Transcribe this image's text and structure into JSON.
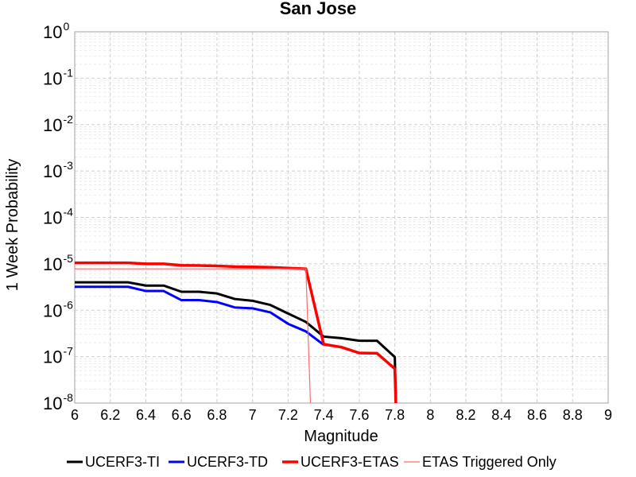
{
  "chart_data": {
    "type": "line",
    "title": "San Jose",
    "xlabel": "Magnitude",
    "ylabel": "1 Week Probability",
    "xlim": [
      6,
      9
    ],
    "ylim": [
      1e-08,
      1
    ],
    "yscale": "log",
    "grid": true,
    "legend_position": "bottom",
    "x_ticks": [
      "6",
      "6.2",
      "6.4",
      "6.6",
      "6.8",
      "7",
      "7.2",
      "7.4",
      "7.6",
      "7.8",
      "8",
      "8.2",
      "8.4",
      "8.6",
      "8.8",
      "9"
    ],
    "y_ticks": [
      {
        "base": "10",
        "exp": "0"
      },
      {
        "base": "10",
        "exp": "-1"
      },
      {
        "base": "10",
        "exp": "-2"
      },
      {
        "base": "10",
        "exp": "-3"
      },
      {
        "base": "10",
        "exp": "-4"
      },
      {
        "base": "10",
        "exp": "-5"
      },
      {
        "base": "10",
        "exp": "-6"
      },
      {
        "base": "10",
        "exp": "-7"
      },
      {
        "base": "10",
        "exp": "-8"
      }
    ],
    "series": [
      {
        "name": "UCERF3-TI",
        "color": "#000000",
        "width": 3,
        "points": [
          [
            6.0,
            4e-06
          ],
          [
            6.1,
            4e-06
          ],
          [
            6.2,
            4e-06
          ],
          [
            6.3,
            4e-06
          ],
          [
            6.4,
            3.4e-06
          ],
          [
            6.5,
            3.4e-06
          ],
          [
            6.6,
            2.5e-06
          ],
          [
            6.7,
            2.5e-06
          ],
          [
            6.8,
            2.3e-06
          ],
          [
            6.9,
            1.75e-06
          ],
          [
            7.0,
            1.6e-06
          ],
          [
            7.1,
            1.3e-06
          ],
          [
            7.2,
            8.5e-07
          ],
          [
            7.3,
            5.6e-07
          ],
          [
            7.4,
            2.7e-07
          ],
          [
            7.5,
            2.5e-07
          ],
          [
            7.6,
            2.2e-07
          ],
          [
            7.7,
            2.2e-07
          ],
          [
            7.8,
            9.8e-08
          ],
          [
            7.81,
            3e-09
          ]
        ]
      },
      {
        "name": "UCERF3-TD",
        "color": "#0000ff",
        "width": 3,
        "points": [
          [
            6.0,
            3.2e-06
          ],
          [
            6.1,
            3.2e-06
          ],
          [
            6.2,
            3.2e-06
          ],
          [
            6.3,
            3.2e-06
          ],
          [
            6.4,
            2.6e-06
          ],
          [
            6.5,
            2.6e-06
          ],
          [
            6.6,
            1.65e-06
          ],
          [
            6.7,
            1.65e-06
          ],
          [
            6.8,
            1.5e-06
          ],
          [
            6.9,
            1.15e-06
          ],
          [
            7.0,
            1.1e-06
          ],
          [
            7.1,
            9e-07
          ],
          [
            7.2,
            5.1e-07
          ],
          [
            7.3,
            3.5e-07
          ],
          [
            7.4,
            1.8e-07
          ]
        ]
      },
      {
        "name": "UCERF3-ETAS",
        "color": "#ff0000",
        "width": 3.5,
        "points": [
          [
            6.0,
            1.05e-05
          ],
          [
            6.1,
            1.05e-05
          ],
          [
            6.2,
            1.05e-05
          ],
          [
            6.3,
            1.05e-05
          ],
          [
            6.4,
            1e-05
          ],
          [
            6.5,
            1e-05
          ],
          [
            6.6,
            9.3e-06
          ],
          [
            6.7,
            9.2e-06
          ],
          [
            6.8,
            9e-06
          ],
          [
            6.9,
            8.7e-06
          ],
          [
            7.0,
            8.6e-06
          ],
          [
            7.1,
            8.4e-06
          ],
          [
            7.2,
            8.1e-06
          ],
          [
            7.3,
            7.8e-06
          ],
          [
            7.4,
            1.85e-07
          ],
          [
            7.5,
            1.6e-07
          ],
          [
            7.6,
            1.2e-07
          ],
          [
            7.7,
            1.18e-07
          ],
          [
            7.8,
            5.5e-08
          ],
          [
            7.81,
            3e-09
          ]
        ]
      },
      {
        "name": "ETAS Triggered Only",
        "color": "#ff6b6b",
        "width": 1.2,
        "points": [
          [
            6.0,
            7.8e-06
          ],
          [
            6.3,
            7.8e-06
          ],
          [
            7.3,
            7.8e-06
          ],
          [
            7.33,
            3e-09
          ]
        ]
      }
    ]
  }
}
